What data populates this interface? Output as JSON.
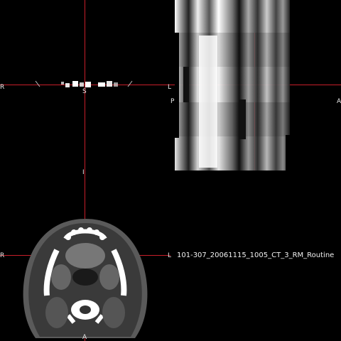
{
  "viewer": {
    "series_label": "101-307_20061115_1005_CT_3_RM_Routine",
    "crosshair_color": "#c81e2a",
    "background": "#000000"
  },
  "coronal": {
    "labels": {
      "left": "R",
      "right": "L",
      "top": "S",
      "bottom": "I"
    }
  },
  "sagittal": {
    "labels": {
      "left": "P",
      "right": "A"
    }
  },
  "axial": {
    "labels": {
      "left": "R",
      "right": "L",
      "bottom": "A"
    }
  }
}
